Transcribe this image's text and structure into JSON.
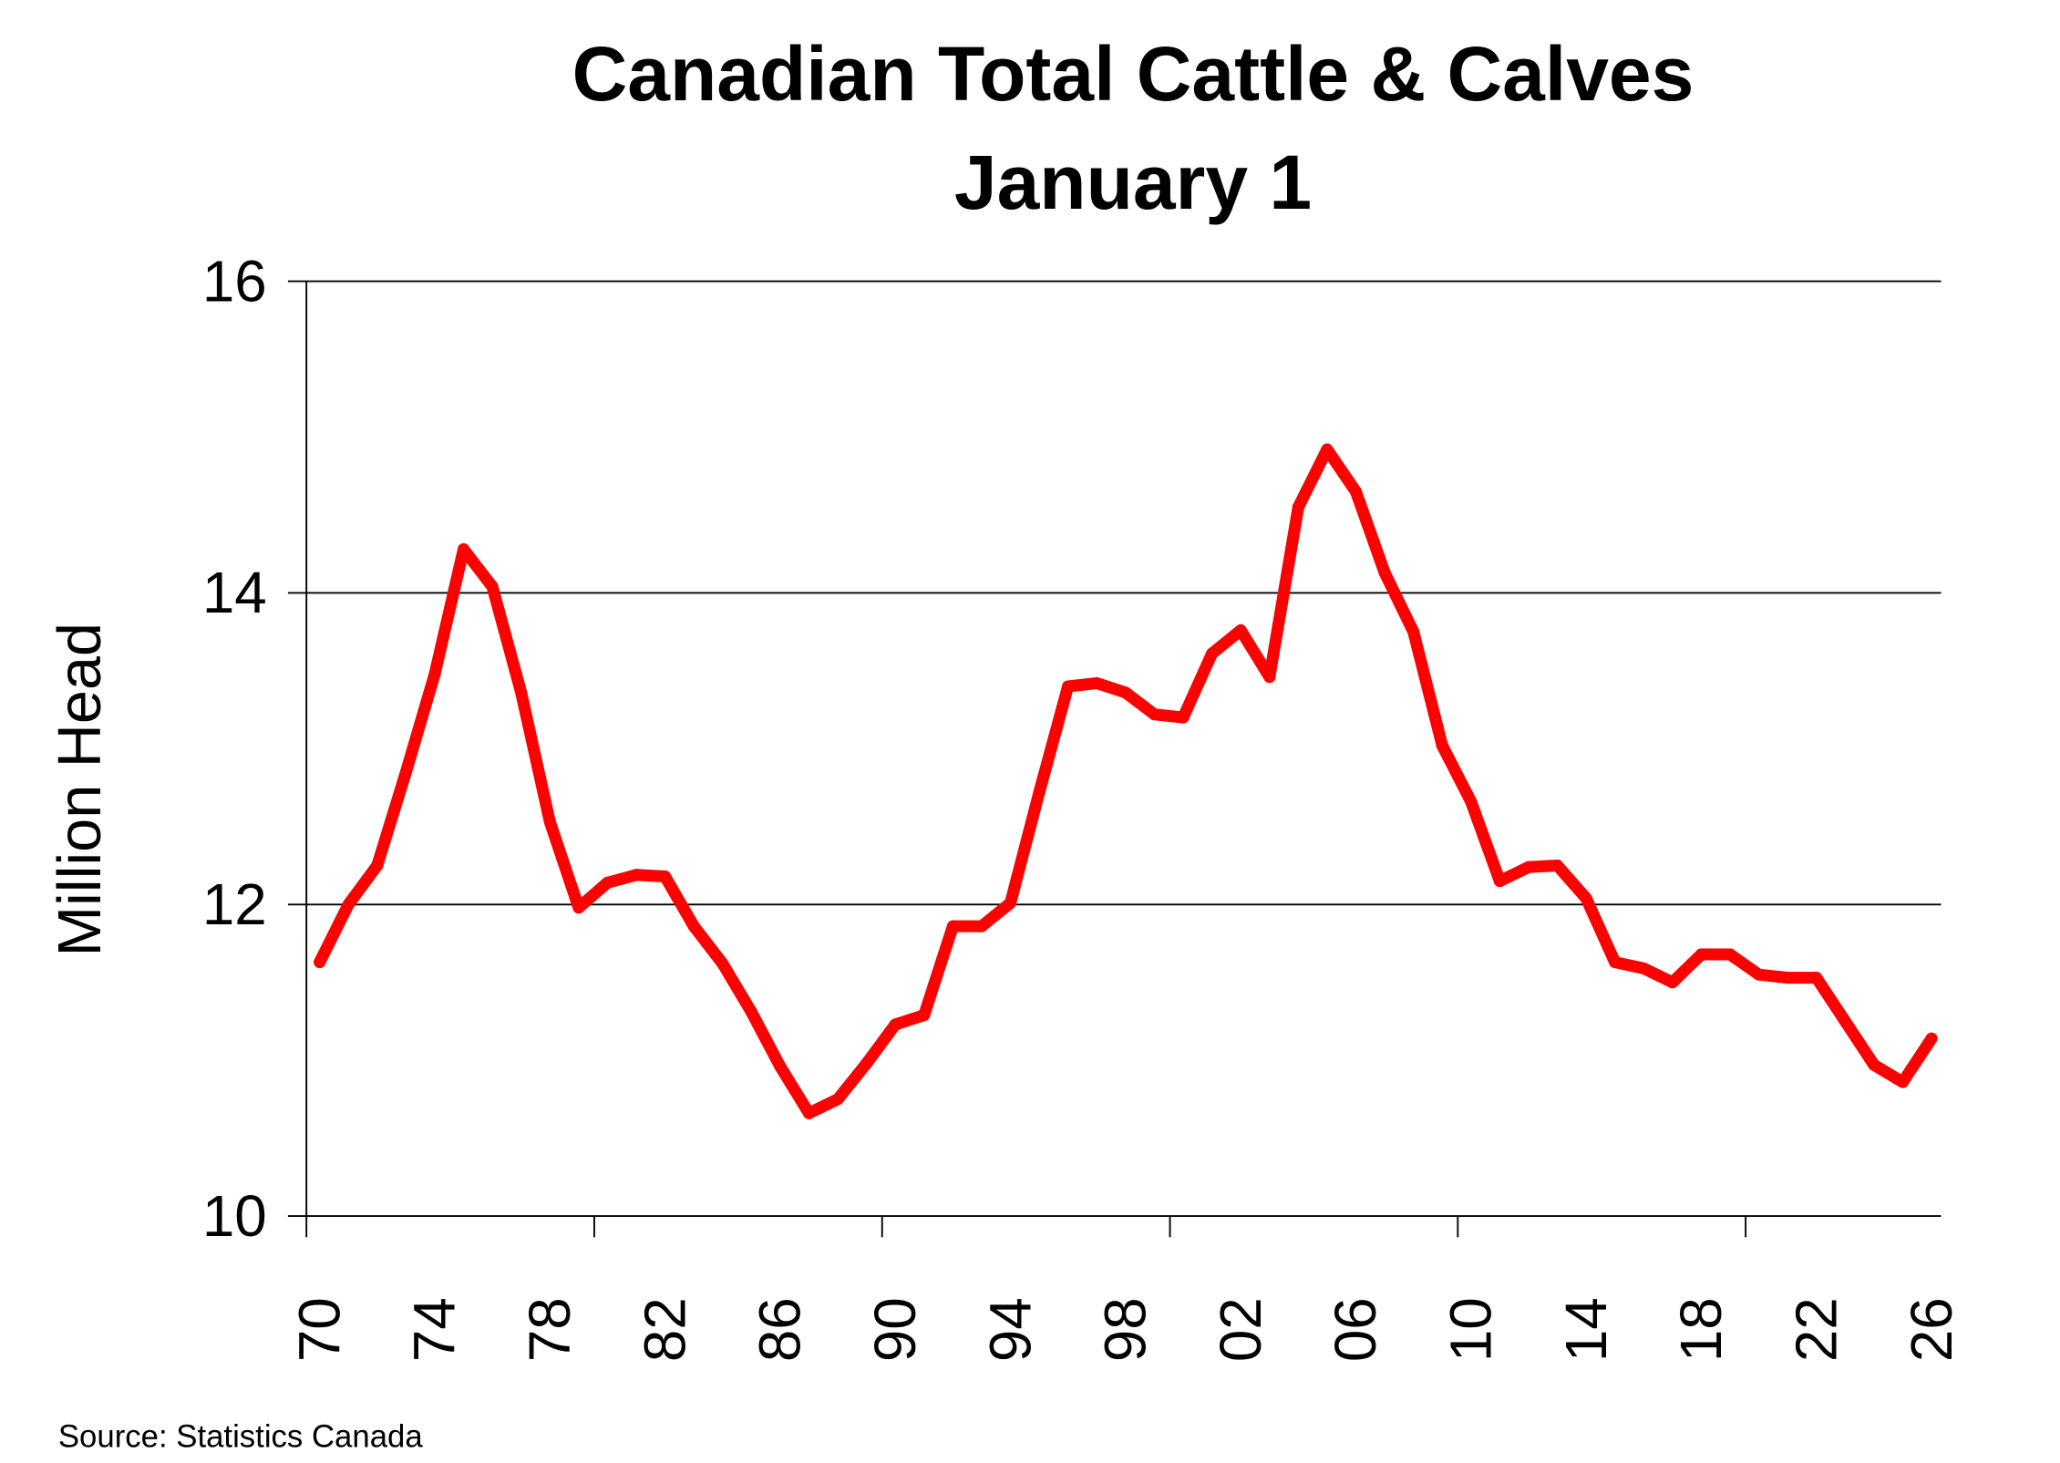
{
  "chart_data": {
    "type": "line",
    "title": "Canadian Total Cattle & Calves",
    "subtitle": "January 1",
    "xlabel": "",
    "ylabel": "Million Head",
    "ylim": [
      10,
      16
    ],
    "yticks": [
      10,
      12,
      14,
      16
    ],
    "grid": true,
    "source": "Source:  Statistics Canada",
    "xtick_labels": [
      "70",
      "74",
      "78",
      "82",
      "86",
      "90",
      "94",
      "98",
      "02",
      "06",
      "10",
      "14",
      "18",
      "22",
      "26"
    ],
    "line_color": "#FF0000",
    "x": [
      1970,
      1971,
      1972,
      1973,
      1974,
      1975,
      1976,
      1977,
      1978,
      1979,
      1980,
      1981,
      1982,
      1983,
      1984,
      1985,
      1986,
      1987,
      1988,
      1989,
      1990,
      1991,
      1992,
      1993,
      1994,
      1995,
      1996,
      1997,
      1998,
      1999,
      2000,
      2001,
      2002,
      2003,
      2004,
      2005,
      2006,
      2007,
      2008,
      2009,
      2010,
      2011,
      2012,
      2013,
      2014,
      2015,
      2016,
      2017,
      2018,
      2019,
      2020,
      2021,
      2022,
      2023,
      2024,
      2025,
      2026
    ],
    "series": [
      {
        "name": "Total Cattle & Calves",
        "values": [
          11.63,
          12.0,
          12.25,
          12.85,
          13.48,
          14.28,
          14.04,
          13.36,
          12.53,
          11.98,
          12.14,
          12.19,
          12.18,
          11.86,
          11.62,
          11.31,
          10.96,
          10.66,
          10.75,
          10.98,
          11.23,
          11.29,
          11.86,
          11.86,
          12.01,
          12.72,
          13.4,
          13.42,
          13.36,
          13.22,
          13.2,
          13.61,
          13.76,
          13.46,
          14.55,
          14.92,
          14.65,
          14.13,
          13.75,
          13.02,
          12.66,
          12.15,
          12.24,
          12.25,
          12.04,
          11.63,
          11.59,
          11.5,
          11.68,
          11.68,
          11.55,
          11.53,
          11.53,
          11.25,
          10.97,
          10.86,
          11.14
        ]
      }
    ]
  }
}
